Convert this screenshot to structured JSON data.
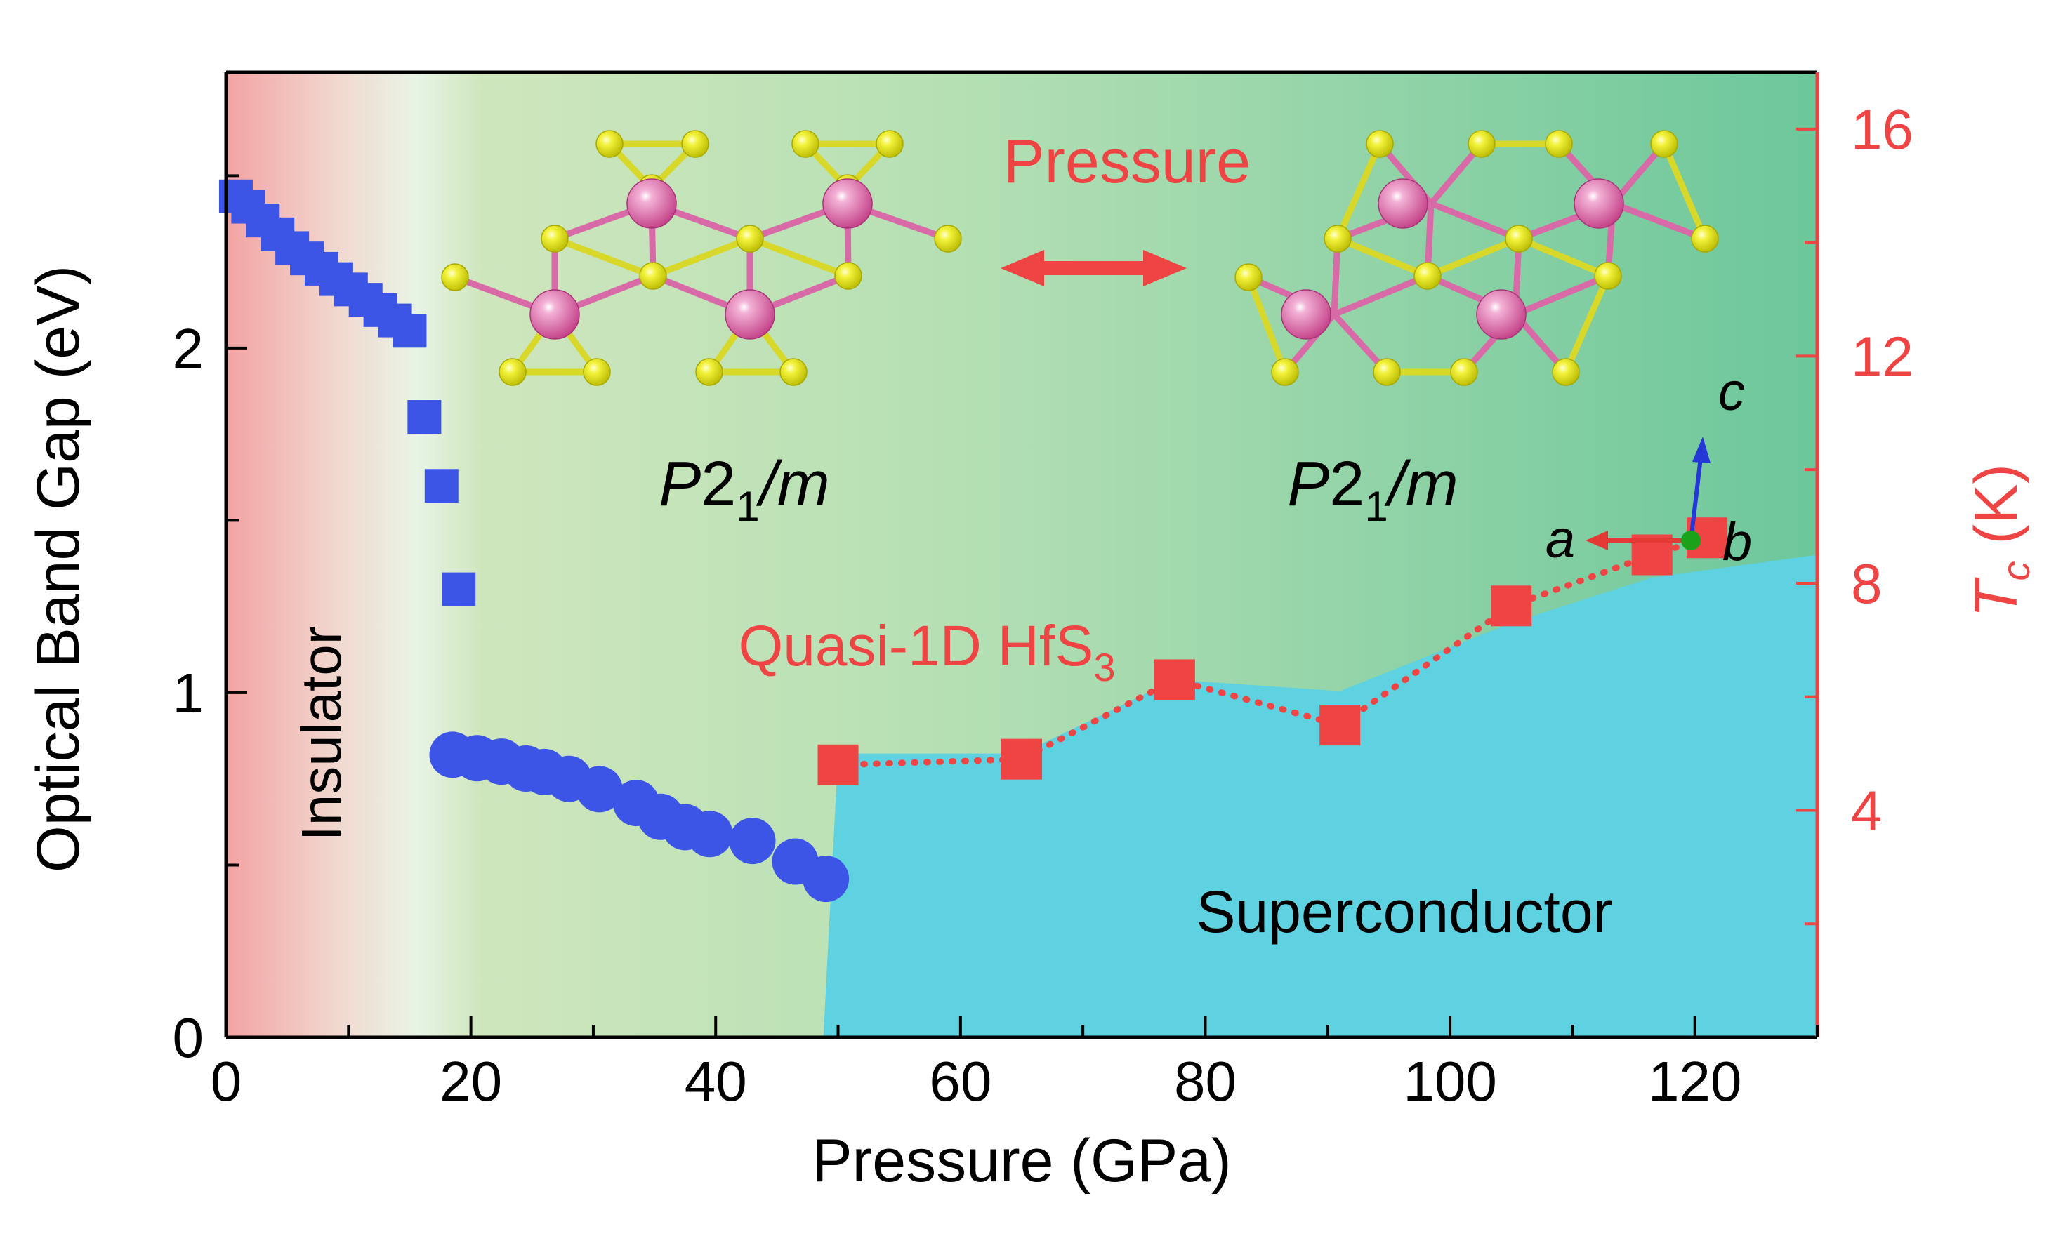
{
  "chart_data": {
    "type": "scatter",
    "xlabel": "Pressure (GPa)",
    "ylabel": "Optical Band Gap (eV)",
    "y2label_base": "T",
    "y2label_sub": "c",
    "y2label_unit": " (K)",
    "xlim": [
      0,
      130
    ],
    "ylim": [
      0,
      2.8
    ],
    "y2lim": [
      0,
      17
    ],
    "x_ticks": [
      0,
      20,
      40,
      60,
      80,
      100,
      120
    ],
    "y_ticks": [
      0,
      1,
      2
    ],
    "y2_ticks": [
      4,
      8,
      12,
      16
    ],
    "grid": false,
    "series": [
      {
        "marker": "square",
        "color": "#3d55e6",
        "axis": "left",
        "x": [
          0.8,
          1.8,
          3.0,
          4.2,
          5.4,
          6.6,
          7.8,
          9.0,
          10.2,
          11.4,
          12.6,
          13.8,
          15.0,
          16.2,
          17.6,
          19.0
        ],
        "y": [
          2.44,
          2.41,
          2.37,
          2.33,
          2.29,
          2.26,
          2.23,
          2.2,
          2.17,
          2.14,
          2.11,
          2.08,
          2.05,
          1.8,
          1.6,
          1.3
        ]
      },
      {
        "marker": "circle",
        "color": "#3d55e6",
        "axis": "left",
        "x": [
          18.5,
          20.5,
          22.5,
          24.5,
          26.0,
          28.0,
          30.5,
          33.5,
          35.5,
          37.5,
          39.5,
          43.0,
          46.5,
          49.0
        ],
        "y": [
          0.82,
          0.81,
          0.8,
          0.78,
          0.77,
          0.75,
          0.72,
          0.68,
          0.64,
          0.61,
          0.59,
          0.57,
          0.51,
          0.46
        ]
      },
      {
        "marker": "square",
        "color": "#ef4444",
        "axis": "right",
        "connect": "dotted",
        "x": [
          50.0,
          65.0,
          77.5,
          91.0,
          105.0,
          116.5,
          121.0
        ],
        "y": [
          4.8,
          4.9,
          6.3,
          5.5,
          7.6,
          8.5,
          8.8
        ]
      }
    ],
    "annotations": {
      "insulator": "Insulator",
      "superconductor": "Superconductor",
      "pressure": "Pressure",
      "phase_left_pre": "P",
      "phase_left_sub": "1",
      "phase_left_mid": "2",
      "phase_left_post": "/m",
      "phase_right_pre": "P",
      "phase_right_sub": "1",
      "phase_right_mid": "2",
      "phase_right_post": "/m",
      "material_pre": "Quasi-1D HfS",
      "material_sub": "3",
      "axis_a": "a",
      "axis_b": "b",
      "axis_c": "c"
    },
    "colors": {
      "axis_right": "#ef4444",
      "text_red": "#ef4444",
      "insulator_bg": "#f3a3a3",
      "metal_bg": "#b7e1b5",
      "metal_bg_dark": "#6cc79b",
      "superconductor_bg": "#5ed2e0",
      "hf_atom": "#e05aa5",
      "s_atom": "#eaea22"
    }
  }
}
